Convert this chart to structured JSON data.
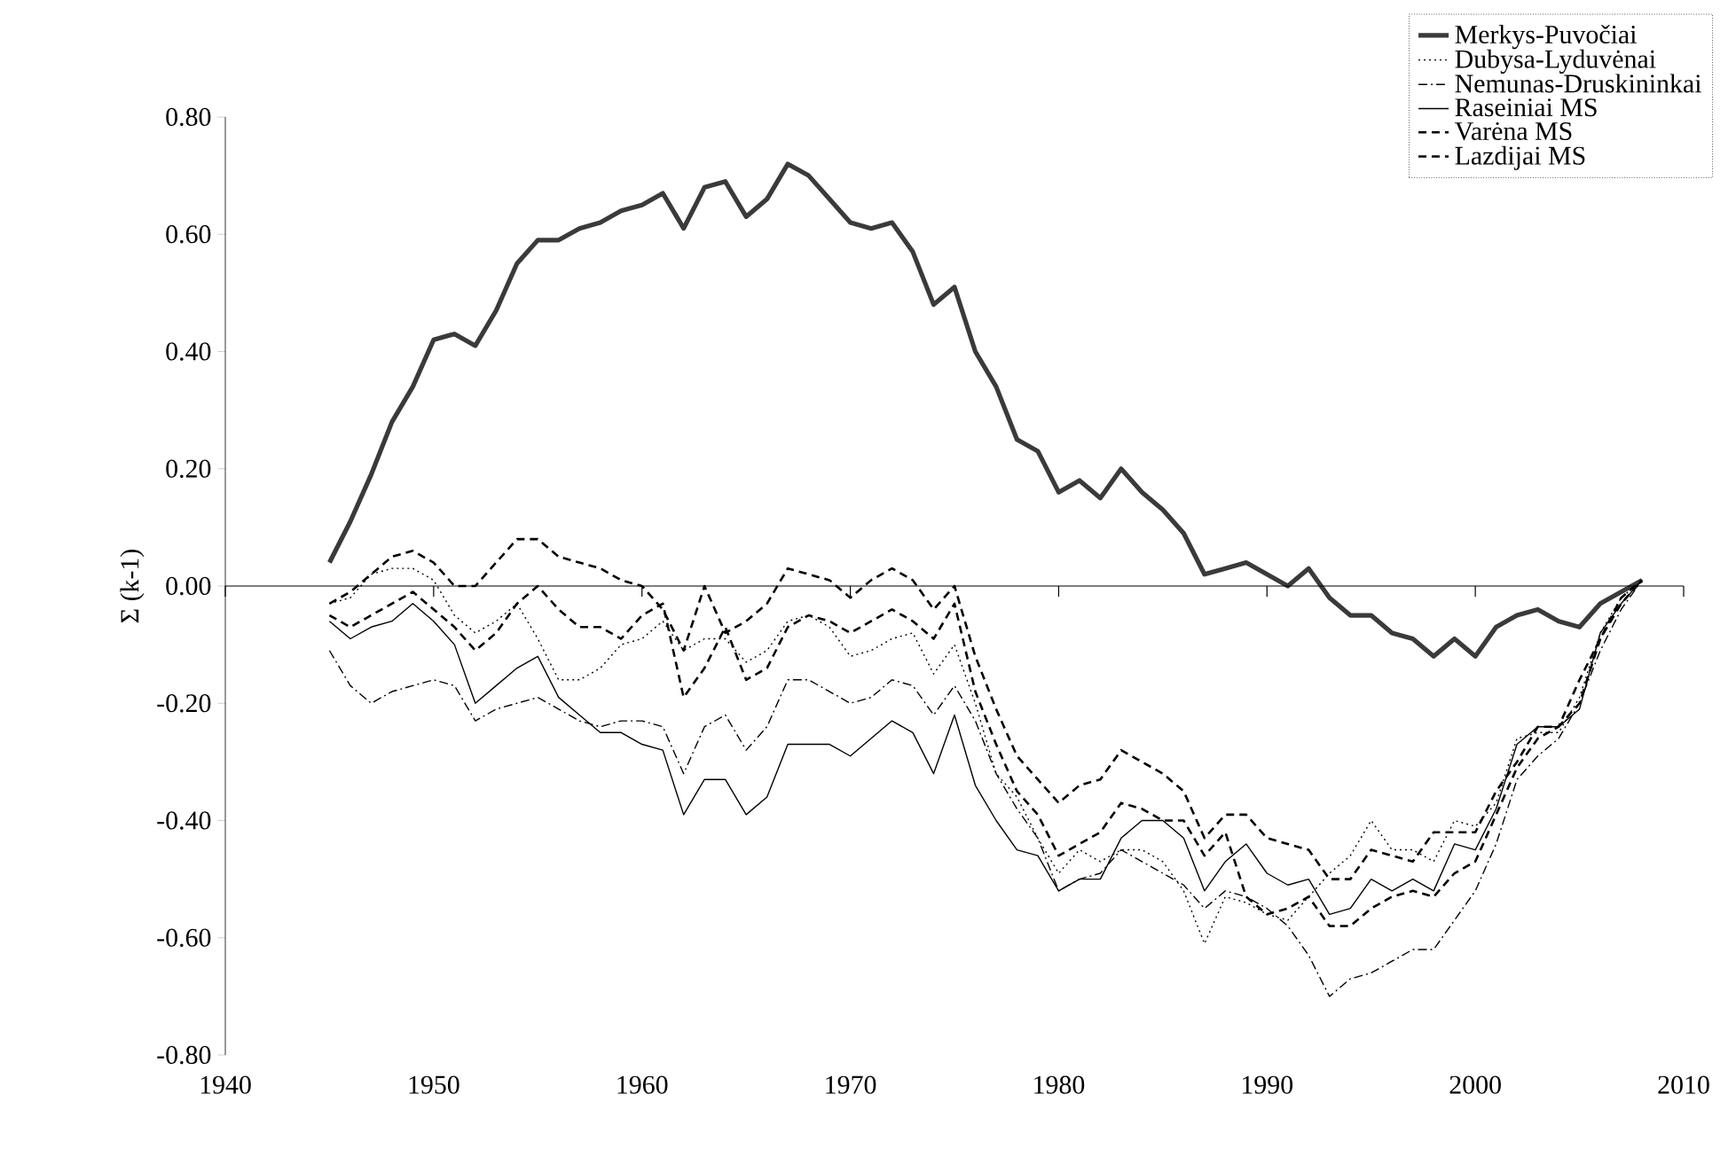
{
  "chart_data": {
    "type": "line",
    "ylabel": "Σ (k-1)",
    "x": [
      1945,
      1946,
      1947,
      1948,
      1949,
      1950,
      1951,
      1952,
      1953,
      1954,
      1955,
      1956,
      1957,
      1958,
      1959,
      1960,
      1961,
      1962,
      1963,
      1964,
      1965,
      1966,
      1967,
      1968,
      1969,
      1970,
      1971,
      1972,
      1973,
      1974,
      1975,
      1976,
      1977,
      1978,
      1979,
      1980,
      1981,
      1982,
      1983,
      1984,
      1985,
      1986,
      1987,
      1988,
      1989,
      1990,
      1991,
      1992,
      1993,
      1994,
      1995,
      1996,
      1997,
      1998,
      1999,
      2000,
      2001,
      2002,
      2003,
      2004,
      2005,
      2006,
      2007,
      2008
    ],
    "xlim": [
      1940,
      2010
    ],
    "xticks": [
      1940,
      1950,
      1960,
      1970,
      1980,
      1990,
      2000,
      2010
    ],
    "ylim": [
      -0.8,
      0.8
    ],
    "yticks": [
      {
        "value": -0.8,
        "label": "-0.80"
      },
      {
        "value": -0.6,
        "label": "-0.60"
      },
      {
        "value": -0.4,
        "label": "-0.40"
      },
      {
        "value": -0.2,
        "label": "-0.20"
      },
      {
        "value": 0,
        "label": "0.00"
      },
      {
        "value": 0.2,
        "label": "0.20"
      },
      {
        "value": 0.4,
        "label": "0.40"
      },
      {
        "value": 0.6,
        "label": "0.60"
      },
      {
        "value": 0.8,
        "label": "0.80"
      }
    ],
    "legend": "top right",
    "marker": "none",
    "series": [
      {
        "name": "Merkys-Puvočiai",
        "color": "#3a3a3a",
        "line_style": "solid",
        "values": [
          0.04,
          0.11,
          0.19,
          0.28,
          0.34,
          0.42,
          0.43,
          0.41,
          0.47,
          0.55,
          0.59,
          0.59,
          0.61,
          0.62,
          0.64,
          0.65,
          0.67,
          0.61,
          0.68,
          0.69,
          0.63,
          0.66,
          0.72,
          0.7,
          0.66,
          0.62,
          0.61,
          0.62,
          0.57,
          0.48,
          0.51,
          0.4,
          0.34,
          0.25,
          0.23,
          0.16,
          0.18,
          0.15,
          0.2,
          0.16,
          0.13,
          0.09,
          0.02,
          0.03,
          0.04,
          0.02,
          0.0,
          0.03,
          -0.02,
          -0.05,
          -0.05,
          -0.08,
          -0.09,
          -0.12,
          -0.09,
          -0.12,
          -0.07,
          -0.05,
          -0.04,
          -0.06,
          -0.07,
          -0.03,
          -0.01,
          0.01
        ]
      },
      {
        "name": "Dubysa-Lyduvėnai",
        "color": "#000000",
        "line_style": "dotted",
        "values": [
          -0.03,
          -0.02,
          0.02,
          0.03,
          0.03,
          0.01,
          -0.05,
          -0.08,
          -0.06,
          -0.03,
          -0.09,
          -0.16,
          -0.16,
          -0.14,
          -0.1,
          -0.09,
          -0.06,
          -0.11,
          -0.09,
          -0.09,
          -0.13,
          -0.11,
          -0.06,
          -0.05,
          -0.07,
          -0.12,
          -0.11,
          -0.09,
          -0.08,
          -0.15,
          -0.1,
          -0.2,
          -0.32,
          -0.36,
          -0.43,
          -0.49,
          -0.45,
          -0.47,
          -0.45,
          -0.45,
          -0.47,
          -0.52,
          -0.61,
          -0.53,
          -0.54,
          -0.56,
          -0.57,
          -0.53,
          -0.49,
          -0.46,
          -0.4,
          -0.45,
          -0.45,
          -0.47,
          -0.4,
          -0.41,
          -0.37,
          -0.26,
          -0.25,
          -0.25,
          -0.19,
          -0.08,
          -0.02,
          0.01
        ]
      },
      {
        "name": "Nemunas-Druskininkai",
        "color": "#000000",
        "line_style": "dashdot",
        "values": [
          -0.11,
          -0.17,
          -0.2,
          -0.18,
          -0.17,
          -0.16,
          -0.17,
          -0.23,
          -0.21,
          -0.2,
          -0.19,
          -0.21,
          -0.23,
          -0.24,
          -0.23,
          -0.23,
          -0.24,
          -0.32,
          -0.24,
          -0.22,
          -0.28,
          -0.24,
          -0.16,
          -0.16,
          -0.18,
          -0.2,
          -0.19,
          -0.16,
          -0.17,
          -0.22,
          -0.17,
          -0.23,
          -0.32,
          -0.38,
          -0.43,
          -0.52,
          -0.5,
          -0.49,
          -0.45,
          -0.47,
          -0.49,
          -0.51,
          -0.55,
          -0.52,
          -0.53,
          -0.55,
          -0.58,
          -0.63,
          -0.7,
          -0.67,
          -0.66,
          -0.64,
          -0.62,
          -0.62,
          -0.57,
          -0.52,
          -0.44,
          -0.33,
          -0.29,
          -0.26,
          -0.2,
          -0.11,
          -0.04,
          0.01
        ]
      },
      {
        "name": "Raseiniai MS",
        "color": "#000000",
        "line_style": "solid",
        "values": [
          -0.06,
          -0.09,
          -0.07,
          -0.06,
          -0.03,
          -0.06,
          -0.1,
          -0.2,
          -0.17,
          -0.14,
          -0.12,
          -0.19,
          -0.22,
          -0.25,
          -0.25,
          -0.27,
          -0.28,
          -0.39,
          -0.33,
          -0.33,
          -0.39,
          -0.36,
          -0.27,
          -0.27,
          -0.27,
          -0.29,
          -0.26,
          -0.23,
          -0.25,
          -0.32,
          -0.22,
          -0.34,
          -0.4,
          -0.45,
          -0.46,
          -0.52,
          -0.5,
          -0.5,
          -0.43,
          -0.4,
          -0.4,
          -0.43,
          -0.52,
          -0.47,
          -0.44,
          -0.49,
          -0.51,
          -0.5,
          -0.56,
          -0.55,
          -0.5,
          -0.52,
          -0.5,
          -0.52,
          -0.44,
          -0.45,
          -0.38,
          -0.27,
          -0.24,
          -0.24,
          -0.21,
          -0.08,
          -0.03,
          0.01
        ]
      },
      {
        "name": "Varėna MS",
        "color": "#000000",
        "line_style": "dashed",
        "values": [
          -0.03,
          -0.01,
          0.02,
          0.05,
          0.06,
          0.04,
          0.0,
          0.0,
          0.04,
          0.08,
          0.08,
          0.05,
          0.04,
          0.03,
          0.01,
          0.0,
          -0.04,
          -0.11,
          0.0,
          -0.08,
          -0.06,
          -0.03,
          0.03,
          0.02,
          0.01,
          -0.02,
          0.01,
          0.03,
          0.01,
          -0.04,
          0.0,
          -0.12,
          -0.21,
          -0.29,
          -0.33,
          -0.37,
          -0.34,
          -0.33,
          -0.28,
          -0.3,
          -0.32,
          -0.35,
          -0.43,
          -0.39,
          -0.39,
          -0.43,
          -0.44,
          -0.45,
          -0.5,
          -0.5,
          -0.45,
          -0.46,
          -0.47,
          -0.42,
          -0.42,
          -0.42,
          -0.35,
          -0.3,
          -0.24,
          -0.24,
          -0.2,
          -0.09,
          -0.03,
          0.01
        ]
      },
      {
        "name": "Lazdijai MS",
        "color": "#000000",
        "line_style": "dashed",
        "values": [
          -0.05,
          -0.07,
          -0.05,
          -0.03,
          -0.01,
          -0.04,
          -0.07,
          -0.11,
          -0.08,
          -0.03,
          0.0,
          -0.04,
          -0.07,
          -0.07,
          -0.09,
          -0.05,
          -0.03,
          -0.19,
          -0.14,
          -0.07,
          -0.16,
          -0.14,
          -0.07,
          -0.05,
          -0.06,
          -0.08,
          -0.06,
          -0.04,
          -0.06,
          -0.09,
          -0.03,
          -0.18,
          -0.27,
          -0.35,
          -0.39,
          -0.46,
          -0.44,
          -0.42,
          -0.37,
          -0.38,
          -0.4,
          -0.4,
          -0.46,
          -0.42,
          -0.53,
          -0.56,
          -0.55,
          -0.53,
          -0.58,
          -0.58,
          -0.55,
          -0.53,
          -0.52,
          -0.53,
          -0.49,
          -0.47,
          -0.39,
          -0.31,
          -0.26,
          -0.24,
          -0.16,
          -0.09,
          -0.02,
          0.01
        ]
      }
    ]
  }
}
